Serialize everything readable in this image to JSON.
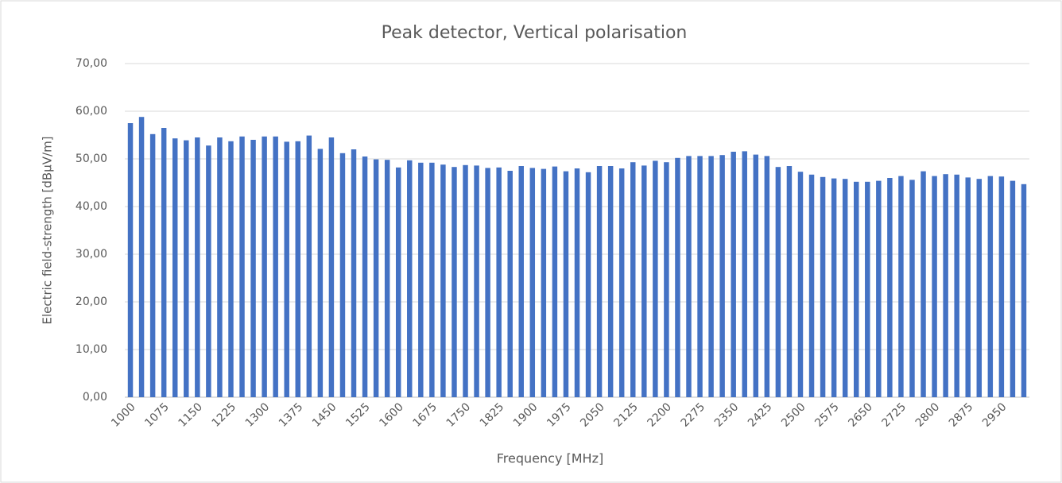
{
  "chart_data": {
    "type": "bar",
    "title": "Peak detector, Vertical polarisation",
    "x_label": "Frequency [MHz]",
    "y_label": "Electric field-strength [dBµV/m]",
    "categories": [
      "1000",
      null,
      null,
      "1075",
      null,
      null,
      "1150",
      null,
      null,
      "1225",
      null,
      null,
      "1300",
      null,
      null,
      "1375",
      null,
      null,
      "1450",
      null,
      null,
      "1525",
      null,
      null,
      "1600",
      null,
      null,
      "1675",
      null,
      null,
      "1750",
      null,
      null,
      "1825",
      null,
      null,
      "1900",
      null,
      null,
      "1975",
      null,
      null,
      "2050",
      null,
      null,
      "2125",
      null,
      null,
      "2200",
      null,
      null,
      "2275",
      null,
      null,
      "2350",
      null,
      null,
      "2425",
      null,
      null,
      "2500",
      null,
      null,
      "2575",
      null,
      null,
      "2650",
      null,
      null,
      "2725",
      null,
      null,
      "2800",
      null,
      null,
      "2875",
      null,
      null,
      "2950",
      null,
      null
    ],
    "values": [
      57.5,
      58.8,
      55.2,
      56.5,
      54.3,
      53.9,
      54.5,
      52.8,
      54.5,
      53.7,
      54.7,
      54.0,
      54.7,
      54.7,
      53.6,
      53.7,
      54.9,
      52.1,
      54.5,
      51.2,
      52.0,
      50.5,
      49.9,
      49.8,
      48.2,
      49.7,
      49.2,
      49.2,
      48.8,
      48.3,
      48.7,
      48.6,
      48.1,
      48.2,
      47.5,
      48.5,
      48.1,
      47.9,
      48.4,
      47.4,
      48.0,
      47.2,
      48.5,
      48.5,
      48.0,
      49.3,
      48.6,
      49.6,
      49.3,
      50.2,
      50.6,
      50.6,
      50.6,
      50.8,
      51.5,
      51.6,
      50.9,
      50.6,
      48.3,
      48.5,
      47.3,
      46.7,
      46.2,
      45.9,
      45.8,
      45.2,
      45.2,
      45.4,
      46.0,
      46.4,
      45.6,
      47.4,
      46.4,
      46.8,
      46.7,
      46.1,
      45.8,
      46.4,
      46.3,
      45.4,
      44.7
    ],
    "color": "#4472c4",
    "ylim": [
      0,
      70
    ],
    "yticks": [
      {
        "value": 0,
        "label": "0,00"
      },
      {
        "value": 10,
        "label": "10,00"
      },
      {
        "value": 20,
        "label": "20,00"
      },
      {
        "value": 30,
        "label": "30,00"
      },
      {
        "value": 40,
        "label": "40,00"
      },
      {
        "value": 50,
        "label": "50,00"
      },
      {
        "value": 60,
        "label": "60,00"
      },
      {
        "value": 70,
        "label": "70,00"
      }
    ],
    "grid": true
  }
}
